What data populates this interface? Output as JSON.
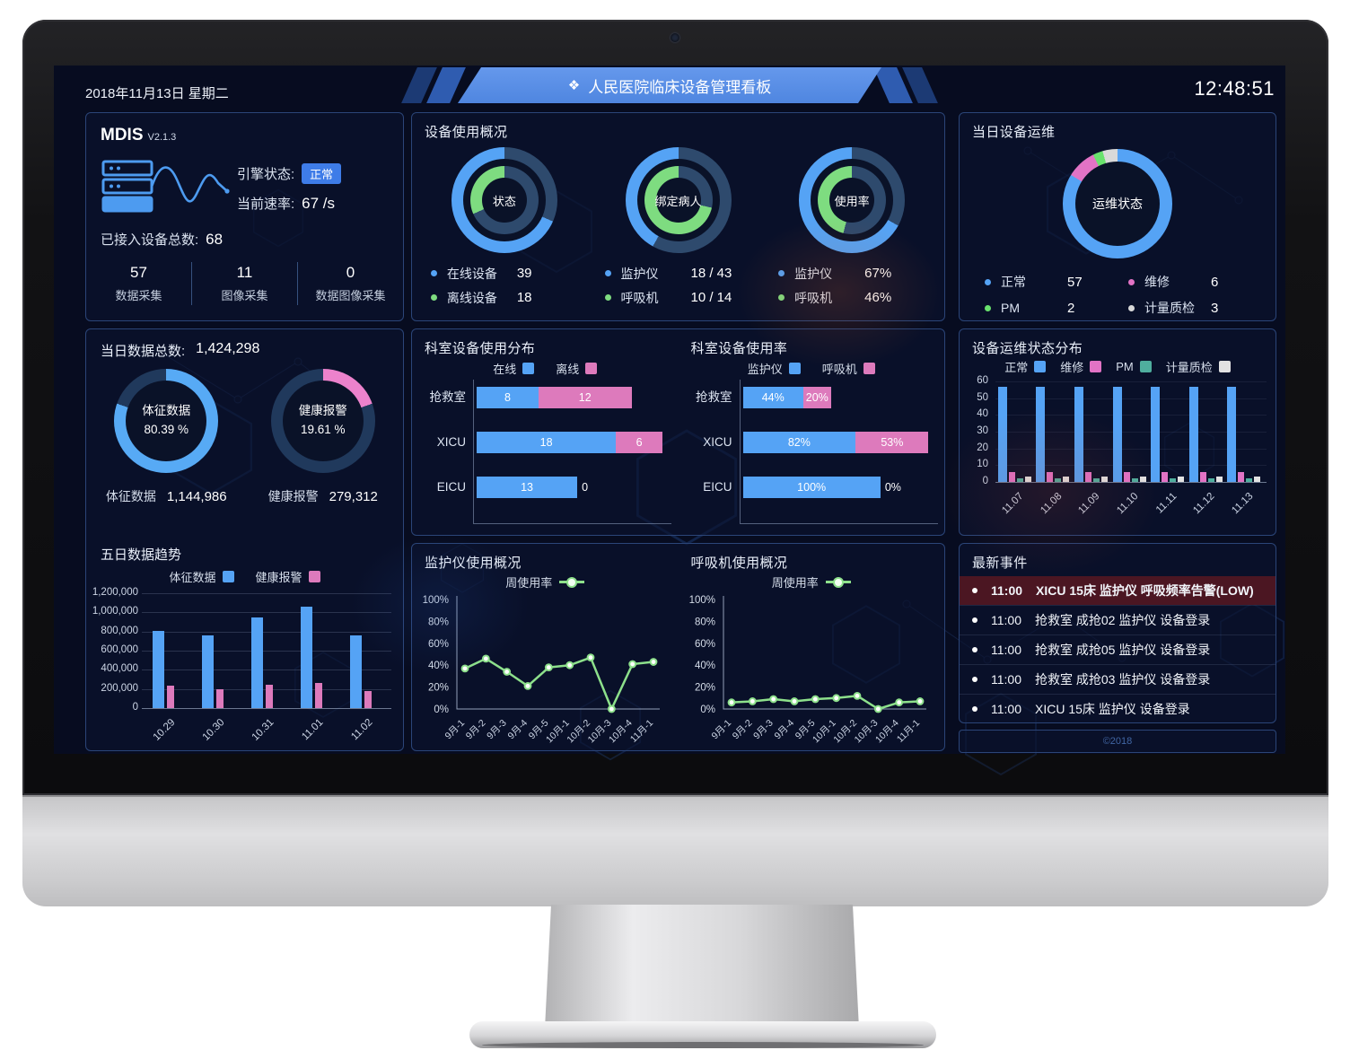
{
  "header": {
    "date": "2018年11月13日 星期二",
    "title": "人民医院临床设备管理看板",
    "title_icon": "❖",
    "time": "12:48:51"
  },
  "mdis": {
    "title": "MDIS",
    "version": "V2.1.3",
    "engine_label": "引擎状态:",
    "engine_status": "正常",
    "rate_label": "当前速率:",
    "rate_value": "67 /s",
    "total_label": "已接入设备总数:",
    "total_value": "68",
    "stats": [
      {
        "value": "57",
        "label": "数据采集"
      },
      {
        "value": "11",
        "label": "图像采集"
      },
      {
        "value": "0",
        "label": "数据图像采集"
      }
    ]
  },
  "usage_overview": {
    "title": "设备使用概况",
    "donuts": [
      {
        "center": "状态",
        "outer_pct": 68.4,
        "inner_pct": 31.6,
        "legend": [
          {
            "color": "#55a3f5",
            "label": "在线设备",
            "value": "39"
          },
          {
            "color": "#7edc80",
            "label": "离线设备",
            "value": "18"
          }
        ]
      },
      {
        "center": "绑定病人",
        "outer_pct": 41.9,
        "inner_pct": 71.4,
        "legend": [
          {
            "color": "#55a3f5",
            "label": "监护仪",
            "value": "18 / 43"
          },
          {
            "color": "#7edc80",
            "label": "呼吸机",
            "value": "10 / 14"
          }
        ]
      },
      {
        "center": "使用率",
        "outer_pct": 67,
        "inner_pct": 46,
        "legend": [
          {
            "color": "#55a3f5",
            "label": "监护仪",
            "value": "67%"
          },
          {
            "color": "#7edc80",
            "label": "呼吸机",
            "value": "46%"
          }
        ]
      }
    ]
  },
  "daily_ops": {
    "title": "当日设备运维",
    "center_label": "运维状态",
    "segments": [
      {
        "label": "正常",
        "value": 57,
        "color": "#55a3f5"
      },
      {
        "label": "维修",
        "value": 6,
        "color": "#e273c5"
      },
      {
        "label": "PM",
        "value": 2,
        "color": "#69e26d"
      },
      {
        "label": "计量质检",
        "value": 3,
        "color": "#d9d9d9"
      }
    ]
  },
  "daily_data": {
    "title_label": "当日数据总数:",
    "title_value": "1,424,298",
    "rings": [
      {
        "center_name": "体征数据",
        "center_pct": "80.39 %",
        "pct": 80.39,
        "color": "#57aaf5",
        "stat_label": "体征数据",
        "stat_value": "1,144,986"
      },
      {
        "center_name": "健康报警",
        "center_pct": "19.61 %",
        "pct": 19.61,
        "color": "#ec82cc",
        "stat_label": "健康报警",
        "stat_value": "279,312"
      }
    ],
    "trend": {
      "type": "bar",
      "title": "五日数据趋势",
      "categories": [
        "10.29",
        "10.30",
        "10.31",
        "11.01",
        "11.02"
      ],
      "series": [
        {
          "name": "体征数据",
          "color": "#55a3f5",
          "values": [
            810000,
            760000,
            950000,
            1060000,
            760000
          ]
        },
        {
          "name": "健康报警",
          "color": "#dd7abc",
          "values": [
            230000,
            200000,
            240000,
            265000,
            180000
          ]
        }
      ],
      "ylim": [
        0,
        1200000
      ],
      "yticks": [
        "1,200,000",
        "1,000,000",
        "800,000",
        "600,000",
        "400,000",
        "200,000",
        "0"
      ]
    }
  },
  "dept_charts": {
    "distribution": {
      "type": "bar-horizontal-stacked",
      "title": "科室设备使用分布",
      "legend": [
        {
          "label": "在线",
          "color": "#55a3f5"
        },
        {
          "label": "离线",
          "color": "#dd7abc"
        }
      ],
      "categories": [
        "抢救室",
        "XICU",
        "EICU"
      ],
      "series": [
        {
          "name": "在线",
          "values": [
            8,
            18,
            13
          ]
        },
        {
          "name": "离线",
          "values": [
            12,
            6,
            0
          ]
        }
      ],
      "labels1": [
        "8",
        "18",
        "13"
      ],
      "labels2": [
        "12",
        "6",
        "0"
      ],
      "xmax": 24
    },
    "usage_rate": {
      "type": "bar-horizontal-stacked",
      "title": "科室设备使用率",
      "legend": [
        {
          "label": "监护仪",
          "color": "#55a3f5"
        },
        {
          "label": "呼吸机",
          "color": "#dd7abc"
        }
      ],
      "categories": [
        "抢救室",
        "XICU",
        "EICU"
      ],
      "series": [
        {
          "name": "监护仪",
          "values": [
            44,
            82,
            100
          ]
        },
        {
          "name": "呼吸机",
          "values": [
            20,
            53,
            0
          ]
        }
      ],
      "labels1": [
        "44%",
        "82%",
        "100%"
      ],
      "labels2": [
        "20%",
        "53%",
        "0%"
      ],
      "xmax": 135
    }
  },
  "ops_distribution": {
    "type": "bar-grouped",
    "title": "设备运维状态分布",
    "legend": [
      {
        "label": "正常",
        "color": "#55a3f5"
      },
      {
        "label": "维修",
        "color": "#e273c5"
      },
      {
        "label": "PM",
        "color": "#4fae9e"
      },
      {
        "label": "计量质检",
        "color": "#e2e2e2"
      }
    ],
    "categories": [
      "11.07",
      "11.08",
      "11.09",
      "11.10",
      "11.11",
      "11.12",
      "11.13"
    ],
    "series": [
      {
        "name": "正常",
        "color": "#55a3f5",
        "values": [
          57,
          57,
          57,
          57,
          57,
          57,
          57
        ]
      },
      {
        "name": "维修",
        "color": "#e273c5",
        "values": [
          6,
          6,
          6,
          6,
          6,
          6,
          6
        ]
      },
      {
        "name": "PM",
        "color": "#4fae9e",
        "values": [
          2,
          2,
          2,
          2,
          2,
          2,
          2
        ]
      },
      {
        "name": "计量质检",
        "color": "#e2e2e2",
        "values": [
          3,
          3,
          3,
          3,
          3,
          3,
          3
        ]
      }
    ],
    "ylim": [
      0,
      60
    ],
    "yticks": [
      "60",
      "50",
      "40",
      "30",
      "20",
      "10",
      "0"
    ]
  },
  "usage_trends": {
    "monitor": {
      "type": "line",
      "title": "监护仪使用概况",
      "legend": "周使用率",
      "color": "#8de08b",
      "x": [
        "9月-1",
        "9月-2",
        "9月-3",
        "9月-4",
        "9月-5",
        "10月-1",
        "10月-2",
        "10月-3",
        "10月-4",
        "11月-1"
      ],
      "values": [
        37,
        46,
        34,
        21,
        38,
        40,
        47,
        0,
        41,
        43
      ],
      "ylim": [
        0,
        100
      ],
      "yticks": [
        "100%",
        "80%",
        "60%",
        "40%",
        "20%",
        "0%"
      ]
    },
    "ventilator": {
      "type": "line",
      "title": "呼吸机使用概况",
      "legend": "周使用率",
      "color": "#8de08b",
      "x": [
        "9月-1",
        "9月-2",
        "9月-3",
        "9月-4",
        "9月-5",
        "10月-1",
        "10月-2",
        "10月-3",
        "10月-4",
        "11月-1"
      ],
      "values": [
        6,
        7,
        9,
        7,
        9,
        10,
        12,
        0,
        6,
        7
      ],
      "ylim": [
        0,
        100
      ],
      "yticks": [
        "100%",
        "80%",
        "60%",
        "40%",
        "20%",
        "0%"
      ]
    }
  },
  "events": {
    "title": "最新事件",
    "items": [
      {
        "time": "11:00",
        "text": "XICU 15床 监护仪 呼吸频率告警(LOW)",
        "alert": true
      },
      {
        "time": "11:00",
        "text": "抢救室 成抢02 监护仪 设备登录",
        "alert": false
      },
      {
        "time": "11:00",
        "text": "抢救室 成抢05 监护仪 设备登录",
        "alert": false
      },
      {
        "time": "11:00",
        "text": "抢救室 成抢03 监护仪 设备登录",
        "alert": false
      },
      {
        "time": "11:00",
        "text": "XICU 15床 监护仪 设备登录",
        "alert": false
      }
    ]
  },
  "footer": {
    "copyright": "©2018"
  },
  "colors": {
    "accent_blue": "#55a3f5",
    "green": "#7edc80",
    "line_green": "#8de08b",
    "pink": "#dd7abc",
    "pink_bright": "#ec82cc",
    "teal": "#4fae9e",
    "gray_white": "#dcdcdc",
    "track": "#2e4a6d",
    "track_dark": "#20395c",
    "badge_blue": "#3e7ce8",
    "alert_bg": "#4b1622"
  }
}
